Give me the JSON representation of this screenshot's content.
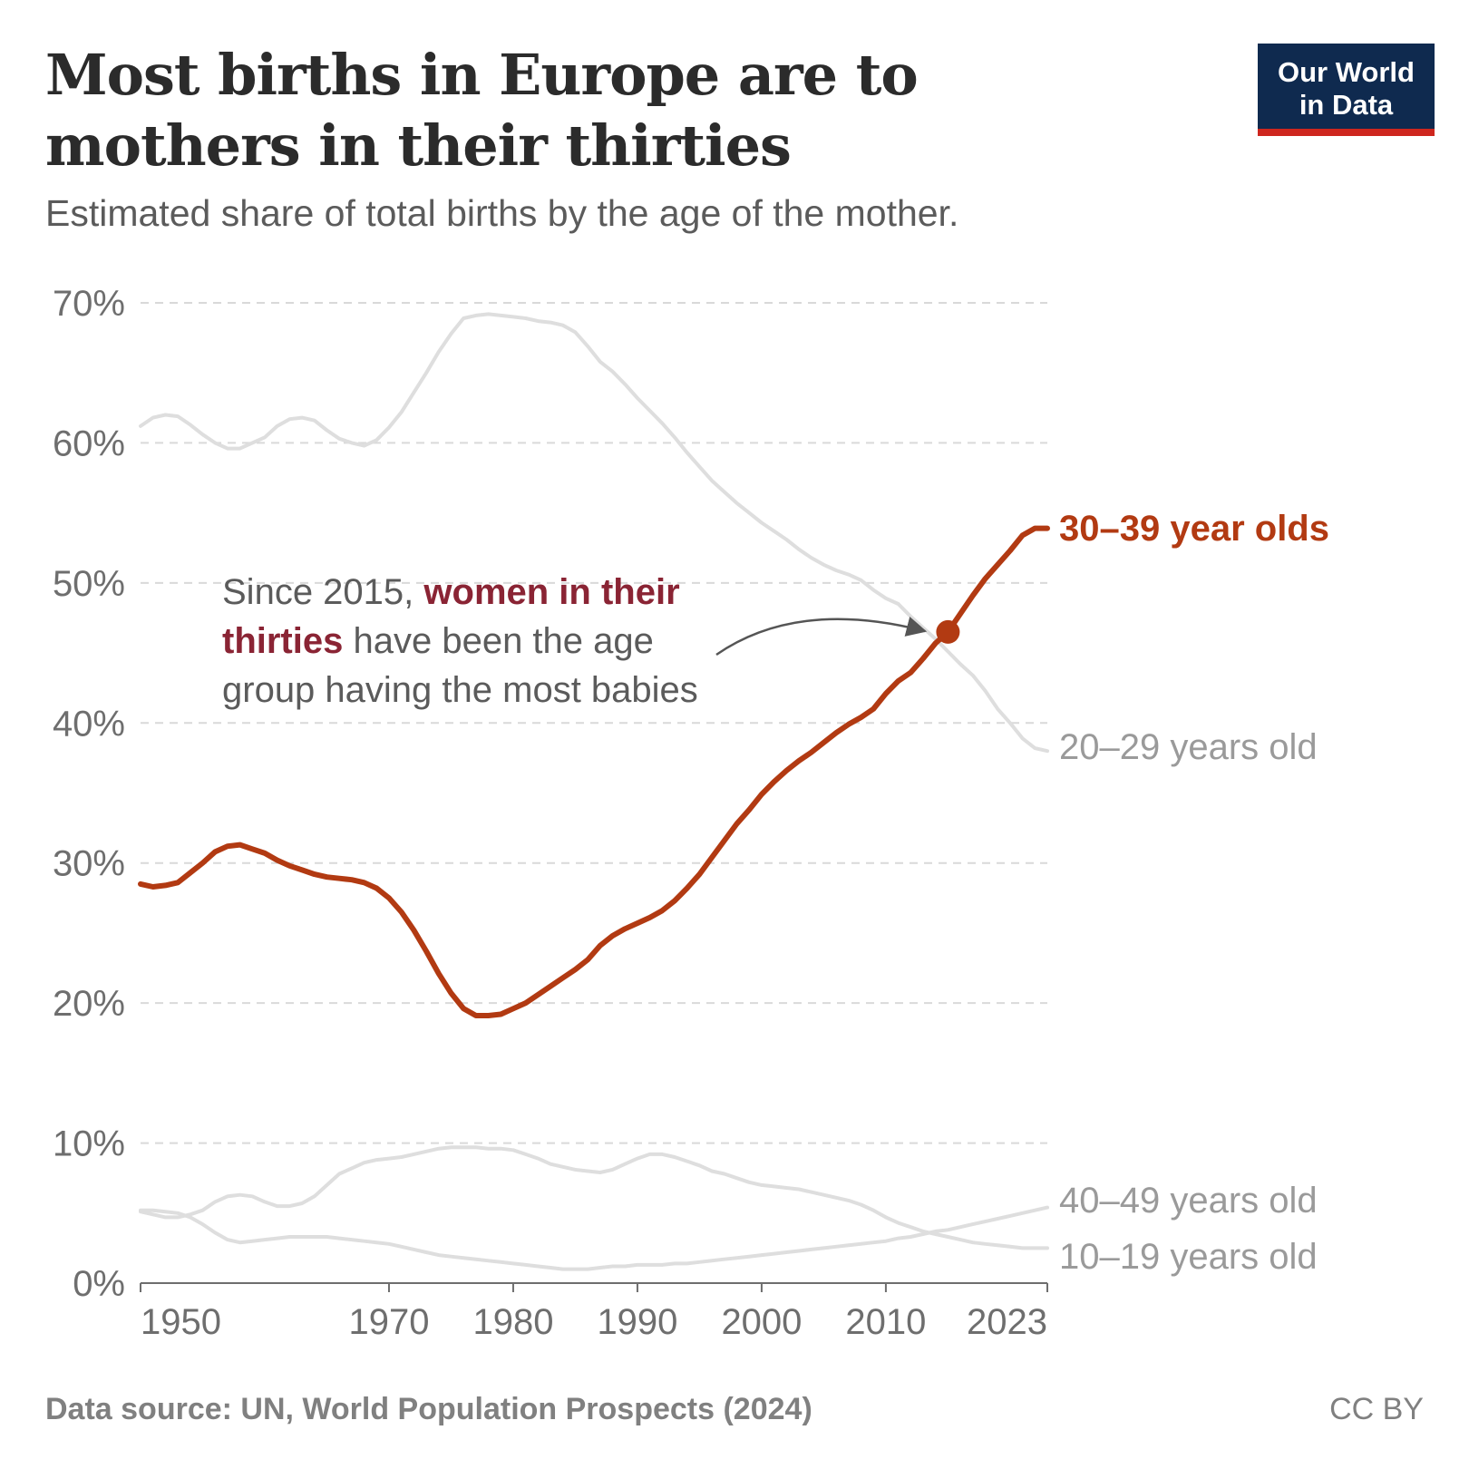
{
  "title": "Most births in Europe are to mothers in their thirties",
  "subtitle": "Estimated share of total births by the age of the mother.",
  "logo": {
    "line1": "Our World",
    "line2": "in Data"
  },
  "footer": {
    "source": "Data source: UN, World Population Prospects (2024)",
    "license": "CC BY"
  },
  "annotation": {
    "part1": "Since 2015, ",
    "highlight1": "women in their",
    "highlight2": "thirties",
    "part2": " have been the age",
    "part3": "group having the most babies"
  },
  "colors": {
    "highlight": "#b23a12",
    "muted": "#dedede",
    "grid": "#d9d9d9",
    "logo_bg": "#0f2a4f",
    "logo_bar": "#ce261e"
  },
  "chart_data": {
    "type": "line",
    "title": "Most births in Europe are to mothers in their thirties",
    "xlabel": "",
    "ylabel": "",
    "xlim": [
      1950,
      2023
    ],
    "ylim": [
      0,
      70
    ],
    "x_ticks": [
      1950,
      1970,
      1980,
      1990,
      2000,
      2010,
      2023
    ],
    "y_ticks": [
      0,
      10,
      20,
      30,
      40,
      50,
      60,
      70
    ],
    "y_tick_labels": [
      "0%",
      "10%",
      "20%",
      "30%",
      "40%",
      "50%",
      "60%",
      "70%"
    ],
    "grid": true,
    "highlight_point": {
      "x": 2015,
      "y": 46.5
    },
    "series": [
      {
        "name": "20–29 years old",
        "label": "20–29 years old",
        "highlight": false,
        "points": [
          [
            1950,
            61.2
          ],
          [
            1951,
            61.8
          ],
          [
            1952,
            62.0
          ],
          [
            1953,
            61.9
          ],
          [
            1954,
            61.3
          ],
          [
            1955,
            60.6
          ],
          [
            1956,
            60.0
          ],
          [
            1957,
            59.6
          ],
          [
            1958,
            59.6
          ],
          [
            1959,
            60.0
          ],
          [
            1960,
            60.4
          ],
          [
            1961,
            61.2
          ],
          [
            1962,
            61.7
          ],
          [
            1963,
            61.8
          ],
          [
            1964,
            61.6
          ],
          [
            1965,
            60.9
          ],
          [
            1966,
            60.3
          ],
          [
            1967,
            60.0
          ],
          [
            1968,
            59.8
          ],
          [
            1969,
            60.2
          ],
          [
            1970,
            61.1
          ],
          [
            1971,
            62.2
          ],
          [
            1972,
            63.6
          ],
          [
            1973,
            65.0
          ],
          [
            1974,
            66.5
          ],
          [
            1975,
            67.8
          ],
          [
            1976,
            68.9
          ],
          [
            1977,
            69.1
          ],
          [
            1978,
            69.2
          ],
          [
            1979,
            69.1
          ],
          [
            1980,
            69.0
          ],
          [
            1981,
            68.9
          ],
          [
            1982,
            68.7
          ],
          [
            1983,
            68.6
          ],
          [
            1984,
            68.4
          ],
          [
            1985,
            67.9
          ],
          [
            1986,
            66.9
          ],
          [
            1987,
            65.8
          ],
          [
            1988,
            65.1
          ],
          [
            1989,
            64.2
          ],
          [
            1990,
            63.2
          ],
          [
            1991,
            62.3
          ],
          [
            1992,
            61.4
          ],
          [
            1993,
            60.4
          ],
          [
            1994,
            59.3
          ],
          [
            1995,
            58.3
          ],
          [
            1996,
            57.3
          ],
          [
            1997,
            56.5
          ],
          [
            1998,
            55.7
          ],
          [
            1999,
            55.0
          ],
          [
            2000,
            54.3
          ],
          [
            2001,
            53.7
          ],
          [
            2002,
            53.1
          ],
          [
            2003,
            52.4
          ],
          [
            2004,
            51.8
          ],
          [
            2005,
            51.3
          ],
          [
            2006,
            50.9
          ],
          [
            2007,
            50.6
          ],
          [
            2008,
            50.2
          ],
          [
            2009,
            49.5
          ],
          [
            2010,
            48.9
          ],
          [
            2011,
            48.5
          ],
          [
            2012,
            47.6
          ],
          [
            2013,
            46.8
          ],
          [
            2014,
            46.0
          ],
          [
            2015,
            45.1
          ],
          [
            2016,
            44.2
          ],
          [
            2017,
            43.4
          ],
          [
            2018,
            42.3
          ],
          [
            2019,
            41.0
          ],
          [
            2020,
            40.0
          ],
          [
            2021,
            38.9
          ],
          [
            2022,
            38.2
          ],
          [
            2023,
            38.0
          ]
        ]
      },
      {
        "name": "30–39 year olds",
        "label": "30–39 year olds",
        "highlight": true,
        "points": [
          [
            1950,
            28.5
          ],
          [
            1951,
            28.3
          ],
          [
            1952,
            28.4
          ],
          [
            1953,
            28.6
          ],
          [
            1954,
            29.3
          ],
          [
            1955,
            30.0
          ],
          [
            1956,
            30.8
          ],
          [
            1957,
            31.2
          ],
          [
            1958,
            31.3
          ],
          [
            1959,
            31.0
          ],
          [
            1960,
            30.7
          ],
          [
            1961,
            30.2
          ],
          [
            1962,
            29.8
          ],
          [
            1963,
            29.5
          ],
          [
            1964,
            29.2
          ],
          [
            1965,
            29.0
          ],
          [
            1966,
            28.9
          ],
          [
            1967,
            28.8
          ],
          [
            1968,
            28.6
          ],
          [
            1969,
            28.2
          ],
          [
            1970,
            27.5
          ],
          [
            1971,
            26.5
          ],
          [
            1972,
            25.2
          ],
          [
            1973,
            23.7
          ],
          [
            1974,
            22.1
          ],
          [
            1975,
            20.7
          ],
          [
            1976,
            19.6
          ],
          [
            1977,
            19.1
          ],
          [
            1978,
            19.1
          ],
          [
            1979,
            19.2
          ],
          [
            1980,
            19.6
          ],
          [
            1981,
            20.0
          ],
          [
            1982,
            20.6
          ],
          [
            1983,
            21.2
          ],
          [
            1984,
            21.8
          ],
          [
            1985,
            22.4
          ],
          [
            1986,
            23.1
          ],
          [
            1987,
            24.1
          ],
          [
            1988,
            24.8
          ],
          [
            1989,
            25.3
          ],
          [
            1990,
            25.7
          ],
          [
            1991,
            26.1
          ],
          [
            1992,
            26.6
          ],
          [
            1993,
            27.3
          ],
          [
            1994,
            28.2
          ],
          [
            1995,
            29.2
          ],
          [
            1996,
            30.4
          ],
          [
            1997,
            31.6
          ],
          [
            1998,
            32.8
          ],
          [
            1999,
            33.8
          ],
          [
            2000,
            34.9
          ],
          [
            2001,
            35.8
          ],
          [
            2002,
            36.6
          ],
          [
            2003,
            37.3
          ],
          [
            2004,
            37.9
          ],
          [
            2005,
            38.6
          ],
          [
            2006,
            39.3
          ],
          [
            2007,
            39.9
          ],
          [
            2008,
            40.4
          ],
          [
            2009,
            41.0
          ],
          [
            2010,
            42.1
          ],
          [
            2011,
            43.0
          ],
          [
            2012,
            43.6
          ],
          [
            2013,
            44.6
          ],
          [
            2014,
            45.7
          ],
          [
            2015,
            46.5
          ],
          [
            2016,
            47.8
          ],
          [
            2017,
            49.1
          ],
          [
            2018,
            50.3
          ],
          [
            2019,
            51.3
          ],
          [
            2020,
            52.3
          ],
          [
            2021,
            53.4
          ],
          [
            2022,
            53.9
          ],
          [
            2023,
            53.9
          ]
        ]
      },
      {
        "name": "40–49 years old",
        "label": "40–49 years old",
        "highlight": false,
        "points": [
          [
            1950,
            5.2
          ],
          [
            1951,
            5.2
          ],
          [
            1952,
            5.1
          ],
          [
            1953,
            5.0
          ],
          [
            1954,
            4.7
          ],
          [
            1955,
            4.2
          ],
          [
            1956,
            3.6
          ],
          [
            1957,
            3.1
          ],
          [
            1958,
            2.9
          ],
          [
            1959,
            3.0
          ],
          [
            1960,
            3.1
          ],
          [
            1961,
            3.2
          ],
          [
            1962,
            3.3
          ],
          [
            1963,
            3.3
          ],
          [
            1964,
            3.3
          ],
          [
            1965,
            3.3
          ],
          [
            1966,
            3.2
          ],
          [
            1967,
            3.1
          ],
          [
            1968,
            3.0
          ],
          [
            1969,
            2.9
          ],
          [
            1970,
            2.8
          ],
          [
            1971,
            2.6
          ],
          [
            1972,
            2.4
          ],
          [
            1973,
            2.2
          ],
          [
            1974,
            2.0
          ],
          [
            1975,
            1.9
          ],
          [
            1976,
            1.8
          ],
          [
            1977,
            1.7
          ],
          [
            1978,
            1.6
          ],
          [
            1979,
            1.5
          ],
          [
            1980,
            1.4
          ],
          [
            1981,
            1.3
          ],
          [
            1982,
            1.2
          ],
          [
            1983,
            1.1
          ],
          [
            1984,
            1.0
          ],
          [
            1985,
            1.0
          ],
          [
            1986,
            1.0
          ],
          [
            1987,
            1.1
          ],
          [
            1988,
            1.2
          ],
          [
            1989,
            1.2
          ],
          [
            1990,
            1.3
          ],
          [
            1991,
            1.3
          ],
          [
            1992,
            1.3
          ],
          [
            1993,
            1.4
          ],
          [
            1994,
            1.4
          ],
          [
            1995,
            1.5
          ],
          [
            1996,
            1.6
          ],
          [
            1997,
            1.7
          ],
          [
            1998,
            1.8
          ],
          [
            1999,
            1.9
          ],
          [
            2000,
            2.0
          ],
          [
            2001,
            2.1
          ],
          [
            2002,
            2.2
          ],
          [
            2003,
            2.3
          ],
          [
            2004,
            2.4
          ],
          [
            2005,
            2.5
          ],
          [
            2006,
            2.6
          ],
          [
            2007,
            2.7
          ],
          [
            2008,
            2.8
          ],
          [
            2009,
            2.9
          ],
          [
            2010,
            3.0
          ],
          [
            2011,
            3.2
          ],
          [
            2012,
            3.3
          ],
          [
            2013,
            3.5
          ],
          [
            2014,
            3.7
          ],
          [
            2015,
            3.8
          ],
          [
            2016,
            4.0
          ],
          [
            2017,
            4.2
          ],
          [
            2018,
            4.4
          ],
          [
            2019,
            4.6
          ],
          [
            2020,
            4.8
          ],
          [
            2021,
            5.0
          ],
          [
            2022,
            5.2
          ],
          [
            2023,
            5.4
          ]
        ]
      },
      {
        "name": "10–19 years old",
        "label": "10–19 years old",
        "highlight": false,
        "points": [
          [
            1950,
            5.1
          ],
          [
            1951,
            4.9
          ],
          [
            1952,
            4.7
          ],
          [
            1953,
            4.7
          ],
          [
            1954,
            4.9
          ],
          [
            1955,
            5.2
          ],
          [
            1956,
            5.8
          ],
          [
            1957,
            6.2
          ],
          [
            1958,
            6.3
          ],
          [
            1959,
            6.2
          ],
          [
            1960,
            5.8
          ],
          [
            1961,
            5.5
          ],
          [
            1962,
            5.5
          ],
          [
            1963,
            5.7
          ],
          [
            1964,
            6.2
          ],
          [
            1965,
            7.0
          ],
          [
            1966,
            7.8
          ],
          [
            1967,
            8.2
          ],
          [
            1968,
            8.6
          ],
          [
            1969,
            8.8
          ],
          [
            1970,
            8.9
          ],
          [
            1971,
            9.0
          ],
          [
            1972,
            9.2
          ],
          [
            1973,
            9.4
          ],
          [
            1974,
            9.6
          ],
          [
            1975,
            9.7
          ],
          [
            1976,
            9.7
          ],
          [
            1977,
            9.7
          ],
          [
            1978,
            9.6
          ],
          [
            1979,
            9.6
          ],
          [
            1980,
            9.5
          ],
          [
            1981,
            9.2
          ],
          [
            1982,
            8.9
          ],
          [
            1983,
            8.5
          ],
          [
            1984,
            8.3
          ],
          [
            1985,
            8.1
          ],
          [
            1986,
            8.0
          ],
          [
            1987,
            7.9
          ],
          [
            1988,
            8.1
          ],
          [
            1989,
            8.5
          ],
          [
            1990,
            8.9
          ],
          [
            1991,
            9.2
          ],
          [
            1992,
            9.2
          ],
          [
            1993,
            9.0
          ],
          [
            1994,
            8.7
          ],
          [
            1995,
            8.4
          ],
          [
            1996,
            8.0
          ],
          [
            1997,
            7.8
          ],
          [
            1998,
            7.5
          ],
          [
            1999,
            7.2
          ],
          [
            2000,
            7.0
          ],
          [
            2001,
            6.9
          ],
          [
            2002,
            6.8
          ],
          [
            2003,
            6.7
          ],
          [
            2004,
            6.5
          ],
          [
            2005,
            6.3
          ],
          [
            2006,
            6.1
          ],
          [
            2007,
            5.9
          ],
          [
            2008,
            5.6
          ],
          [
            2009,
            5.2
          ],
          [
            2010,
            4.7
          ],
          [
            2011,
            4.3
          ],
          [
            2012,
            4.0
          ],
          [
            2013,
            3.7
          ],
          [
            2014,
            3.5
          ],
          [
            2015,
            3.3
          ],
          [
            2016,
            3.1
          ],
          [
            2017,
            2.9
          ],
          [
            2018,
            2.8
          ],
          [
            2019,
            2.7
          ],
          [
            2020,
            2.6
          ],
          [
            2021,
            2.5
          ],
          [
            2022,
            2.5
          ],
          [
            2023,
            2.5
          ]
        ]
      }
    ]
  }
}
